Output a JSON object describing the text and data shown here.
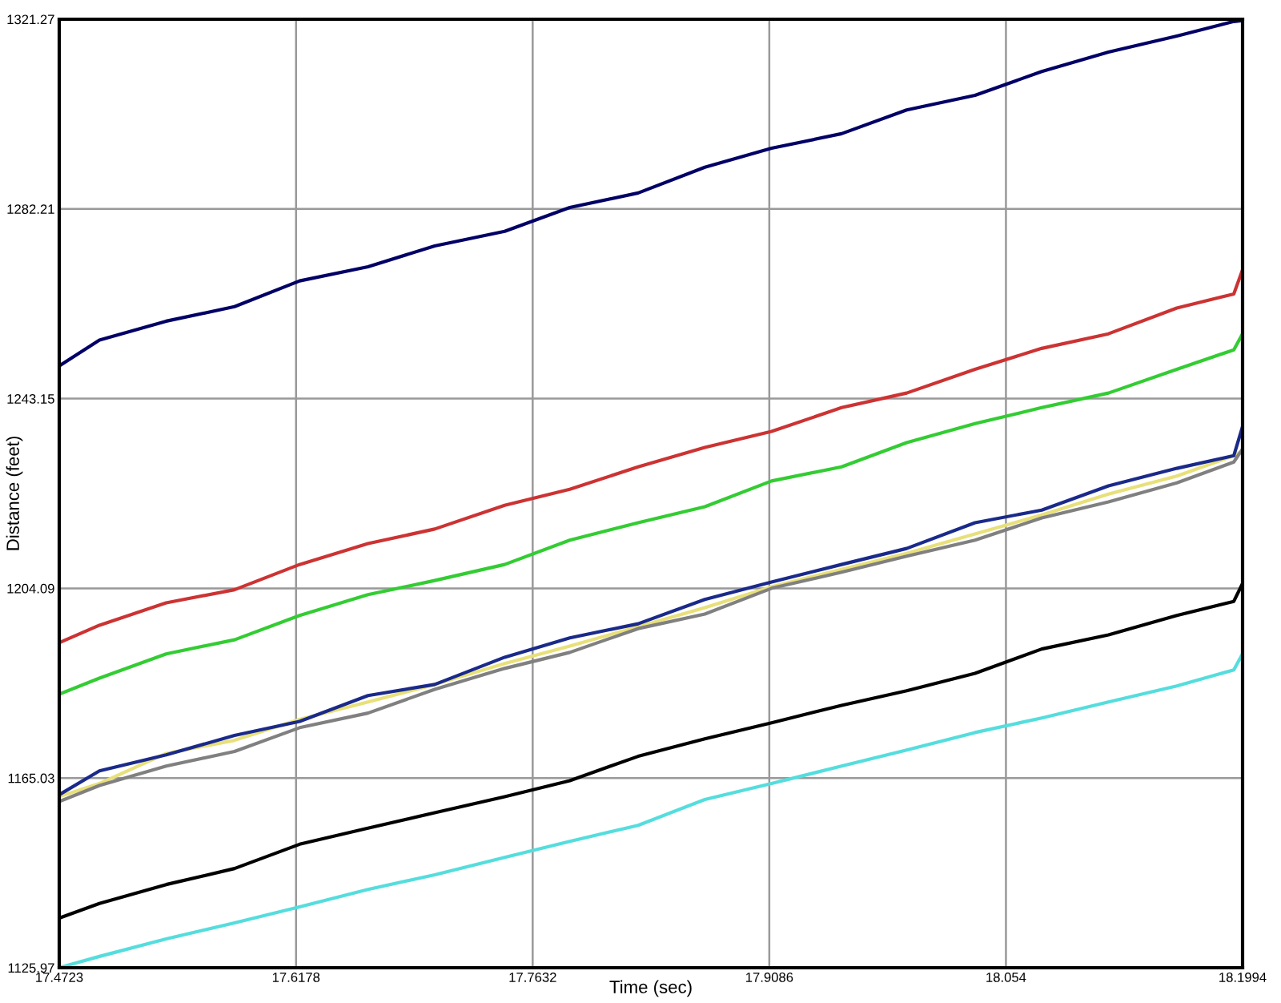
{
  "chart_data": {
    "type": "line",
    "xlabel": "Time (sec)",
    "ylabel": "Distance (feet)",
    "x": [
      17.4723,
      17.497,
      17.538,
      17.58,
      17.62,
      17.662,
      17.703,
      17.746,
      17.786,
      17.828,
      17.869,
      17.91,
      17.953,
      17.993,
      18.035,
      18.076,
      18.117,
      18.159,
      18.194,
      18.1994
    ],
    "series": [
      {
        "color": "#000066",
        "values": [
          1249.9,
          1255.2,
          1259.1,
          1262.1,
          1267.4,
          1270.3,
          1274.6,
          1277.6,
          1282.5,
          1285.5,
          1290.8,
          1294.7,
          1297.7,
          1302.6,
          1305.6,
          1310.5,
          1314.5,
          1317.8,
          1320.8,
          1321.0
        ]
      },
      {
        "color": "#cc3333",
        "values": [
          1192.9,
          1196.5,
          1201.1,
          1203.8,
          1209.0,
          1213.3,
          1216.3,
          1221.2,
          1224.5,
          1229.1,
          1233.1,
          1236.4,
          1241.3,
          1244.3,
          1249.2,
          1253.5,
          1256.5,
          1261.8,
          1264.7,
          1269.7
        ]
      },
      {
        "color": "#33cc33",
        "values": [
          1182.3,
          1185.6,
          1190.6,
          1193.5,
          1198.5,
          1202.8,
          1205.7,
          1209.0,
          1214.0,
          1217.6,
          1220.9,
          1226.2,
          1229.1,
          1234.1,
          1238.0,
          1241.3,
          1244.3,
          1249.2,
          1253.2,
          1256.5
        ]
      },
      {
        "color": "#e8e07a",
        "values": [
          1161.2,
          1163.9,
          1170.1,
          1172.8,
          1177.1,
          1180.7,
          1184.3,
          1188.6,
          1192.2,
          1196.2,
          1200.1,
          1204.4,
          1208.0,
          1211.3,
          1215.3,
          1219.2,
          1223.5,
          1227.2,
          1231.4,
          1232.4
        ]
      },
      {
        "color": "#808080",
        "values": [
          1160.2,
          1163.5,
          1167.5,
          1170.5,
          1175.4,
          1178.4,
          1183.3,
          1187.6,
          1190.9,
          1195.8,
          1198.8,
          1204.1,
          1207.4,
          1210.7,
          1214.0,
          1218.6,
          1221.9,
          1225.8,
          1230.1,
          1232.8
        ]
      },
      {
        "color": "#1a2a8a",
        "values": [
          1161.6,
          1166.5,
          1169.8,
          1173.8,
          1176.7,
          1182.0,
          1184.3,
          1189.9,
          1193.9,
          1196.8,
          1201.8,
          1205.4,
          1209.0,
          1212.3,
          1217.6,
          1220.2,
          1225.2,
          1228.8,
          1231.4,
          1237.4
        ]
      },
      {
        "color": "#000000",
        "values": [
          1136.2,
          1139.2,
          1143.1,
          1146.4,
          1151.4,
          1154.7,
          1157.9,
          1161.2,
          1164.5,
          1169.5,
          1173.1,
          1176.4,
          1180.0,
          1183.0,
          1186.6,
          1191.6,
          1194.5,
          1198.5,
          1201.4,
          1205.1
        ]
      },
      {
        "color": "#55dddd",
        "values": [
          1126.0,
          1128.3,
          1131.9,
          1135.2,
          1138.5,
          1142.1,
          1145.1,
          1148.7,
          1152.0,
          1155.3,
          1160.6,
          1163.9,
          1167.5,
          1170.8,
          1174.4,
          1177.4,
          1180.7,
          1184.0,
          1187.3,
          1190.6
        ]
      }
    ],
    "xlim": [
      17.4723,
      18.1994
    ],
    "xticks": [
      17.4723,
      17.6178,
      17.7632,
      17.9086,
      18.054,
      18.1994
    ],
    "ylim": [
      1125.97,
      1321.27
    ],
    "yticks": [
      1125.97,
      1165.03,
      1204.09,
      1243.15,
      1282.21,
      1321.27
    ],
    "grid": true,
    "marker": "none",
    "line_style": "solid"
  }
}
